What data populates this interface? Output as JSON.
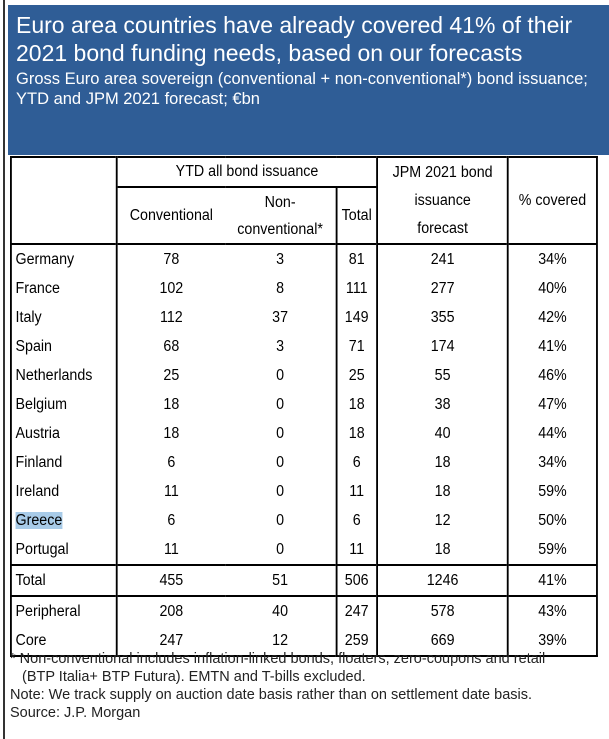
{
  "header": {
    "title": "Euro area countries have already covered 41% of their 2021 bond funding needs, based on our forecasts",
    "subtitle": "Gross Euro area sovereign (conventional + non-conventional*) bond issuance; YTD and JPM 2021 forecast; €bn"
  },
  "table": {
    "group_header": "YTD all bond issuance",
    "columns": {
      "conventional": "Conventional",
      "nonconv_1": "Non-",
      "nonconv_2": "conventional*",
      "total": "Total",
      "forecast_1": "JPM 2021 bond",
      "forecast_2": "issuance",
      "forecast_3": "forecast",
      "covered": "% covered"
    },
    "rows": [
      [
        "Germany",
        "78",
        "3",
        "81",
        "241",
        "34%"
      ],
      [
        "France",
        "102",
        "8",
        "111",
        "277",
        "40%"
      ],
      [
        "Italy",
        "112",
        "37",
        "149",
        "355",
        "42%"
      ],
      [
        "Spain",
        "68",
        "3",
        "71",
        "174",
        "41%"
      ],
      [
        "Netherlands",
        "25",
        "0",
        "25",
        "55",
        "46%"
      ],
      [
        "Belgium",
        "18",
        "0",
        "18",
        "38",
        "47%"
      ],
      [
        "Austria",
        "18",
        "0",
        "18",
        "40",
        "44%"
      ],
      [
        "Finland",
        "6",
        "0",
        "6",
        "18",
        "34%"
      ],
      [
        "Ireland",
        "11",
        "0",
        "11",
        "18",
        "59%"
      ],
      [
        "Greece",
        "6",
        "0",
        "6",
        "12",
        "50%"
      ],
      [
        "Portugal",
        "11",
        "0",
        "11",
        "18",
        "59%"
      ]
    ],
    "total": [
      "Total",
      "455",
      "51",
      "506",
      "1246",
      "41%"
    ],
    "groups": [
      [
        "Peripheral",
        "208",
        "40",
        "247",
        "578",
        "43%"
      ],
      [
        "Core",
        "247",
        "12",
        "259",
        "669",
        "39%"
      ]
    ]
  },
  "footnotes": {
    "line1": "* Non-conventional includes inflation-linked bonds, floaters, zero-coupons and retail",
    "line2": "(BTP Italia+ BTP Futura). EMTN and T-bills excluded.",
    "note": "Note: We track supply on auction date basis rather than on settlement date basis.",
    "source": "Source: J.P. Morgan"
  },
  "colors": {
    "header_bg": "#2f5d96",
    "selection": "#a8cbe8"
  }
}
